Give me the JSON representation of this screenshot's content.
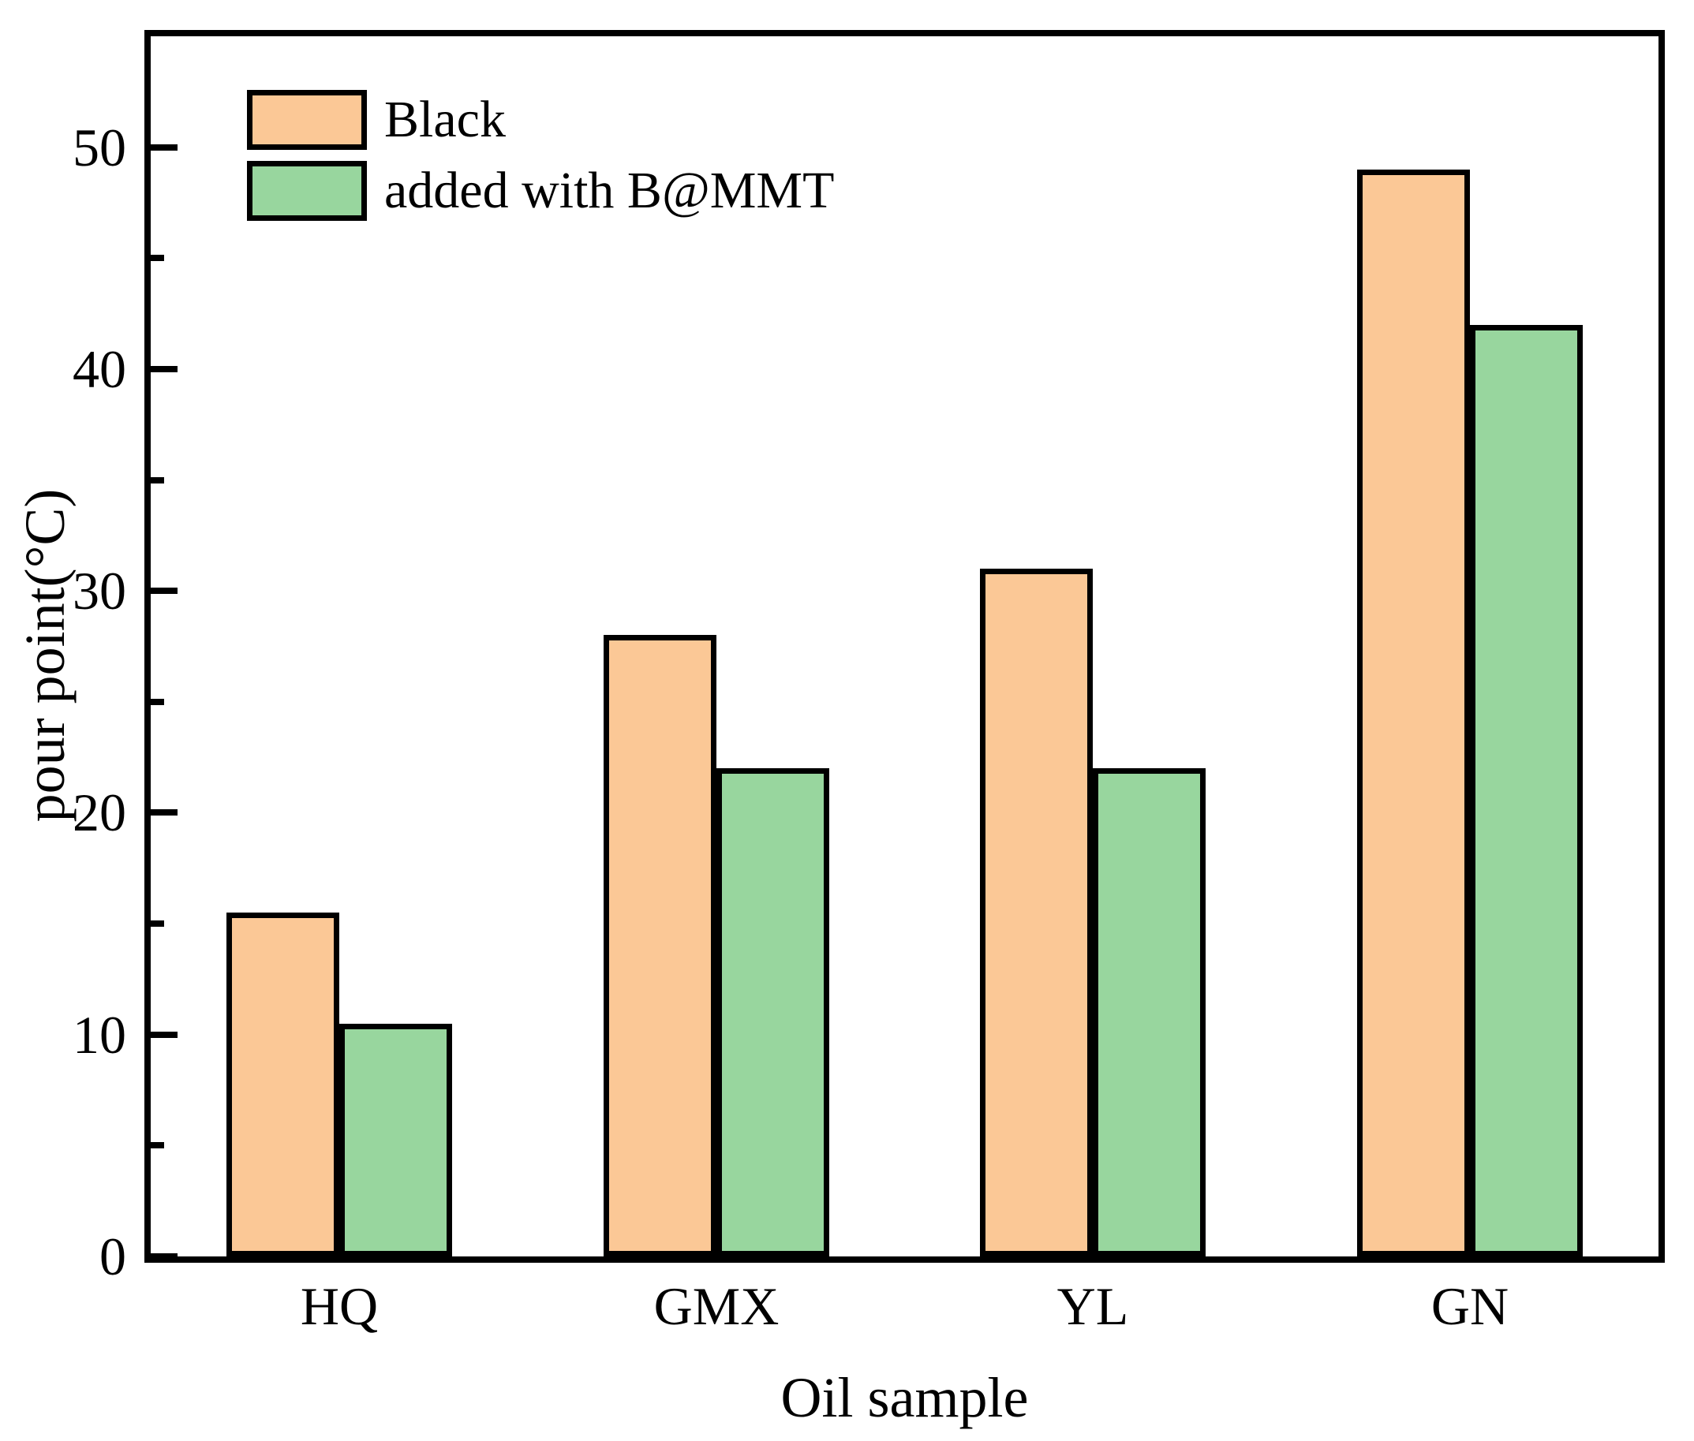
{
  "chart_data": {
    "type": "bar",
    "title": "",
    "xlabel": "Oil sample",
    "ylabel": "pour point(°C)",
    "categories": [
      "HQ",
      "GMX",
      "YL",
      "GN"
    ],
    "series": [
      {
        "name": "Black",
        "color": "#FBC896",
        "values": [
          15.5,
          28,
          31,
          49
        ]
      },
      {
        "name": "added with B@MMT",
        "color": "#98D69E",
        "values": [
          10.5,
          22,
          22,
          42
        ]
      }
    ],
    "ylim": [
      0,
      55
    ],
    "yticks_major": [
      0,
      10,
      20,
      30,
      40,
      50
    ],
    "yticks_minor": [
      5,
      15,
      25,
      35,
      45
    ],
    "grid": false,
    "legend_position": "upper-left",
    "bar_edge_color": "#000000",
    "frame_color": "#000000",
    "background_color": "#ffffff"
  }
}
